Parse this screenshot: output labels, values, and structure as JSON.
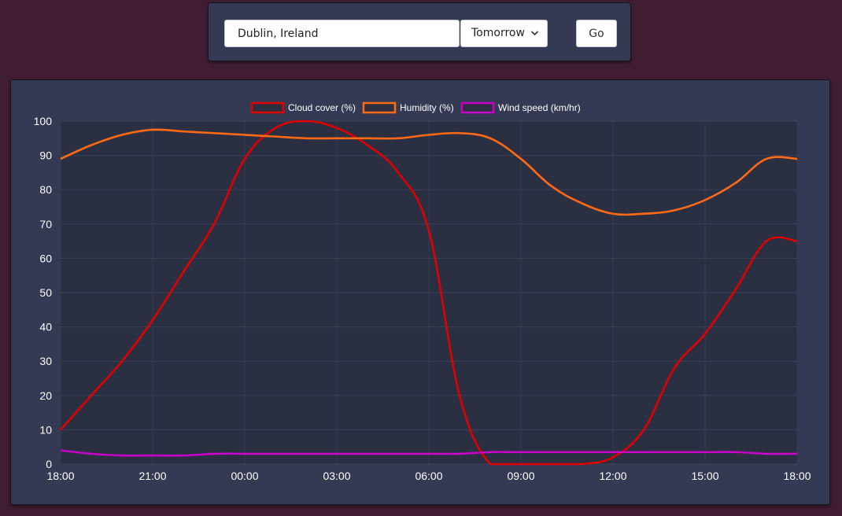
{
  "search": {
    "location_value": "Dublin, Ireland",
    "day_selected": "Tomorrow",
    "go_label": "Go"
  },
  "colors": {
    "page_background": "#411d33",
    "panel_background": "#343a54",
    "plot_background": "#2b2f42",
    "cloud_cover": "#e00000",
    "humidity": "#ff6a14",
    "wind_speed": "#c800c8"
  },
  "chart_data": {
    "type": "line",
    "title": "",
    "xlabel": "",
    "ylabel": "",
    "ylim": [
      0,
      100
    ],
    "y_ticks": [
      0,
      10,
      20,
      30,
      40,
      50,
      60,
      70,
      80,
      90,
      100
    ],
    "x_tick_labels": [
      "18:00",
      "21:00",
      "00:00",
      "03:00",
      "06:00",
      "09:00",
      "12:00",
      "15:00",
      "18:00"
    ],
    "x": [
      "18:00",
      "19:00",
      "20:00",
      "21:00",
      "22:00",
      "23:00",
      "00:00",
      "01:00",
      "02:00",
      "03:00",
      "04:00",
      "05:00",
      "06:00",
      "07:00",
      "08:00",
      "09:00",
      "10:00",
      "11:00",
      "12:00",
      "13:00",
      "14:00",
      "15:00",
      "16:00",
      "17:00",
      "18:00"
    ],
    "grid": true,
    "legend_position": "top-center",
    "series": [
      {
        "name": "Cloud cover (%)",
        "values": [
          10,
          20,
          30,
          42,
          56,
          70,
          89,
          98,
          100,
          98,
          93,
          85,
          68,
          20,
          0,
          0,
          0,
          0,
          2,
          10,
          28,
          38,
          51,
          65,
          65
        ],
        "x_index_offset": 0
      },
      {
        "name": "Humidity (%)",
        "values": [
          89,
          93,
          96,
          97.5,
          97,
          96.5,
          96,
          95.5,
          95,
          95,
          95,
          95,
          96,
          96.5,
          95,
          89,
          81,
          76,
          73,
          73,
          74,
          77,
          82,
          89,
          89
        ],
        "x_index_offset": 0
      },
      {
        "name": "Wind speed (km/hr)",
        "values": [
          4,
          3,
          2.5,
          2.5,
          2.5,
          3,
          3,
          3,
          3,
          3,
          3,
          3,
          3,
          3,
          3.5,
          3.5,
          3.5,
          3.5,
          3.5,
          3.5,
          3.5,
          3.5,
          3.5,
          3,
          3
        ],
        "x_index_offset": 0
      }
    ]
  }
}
